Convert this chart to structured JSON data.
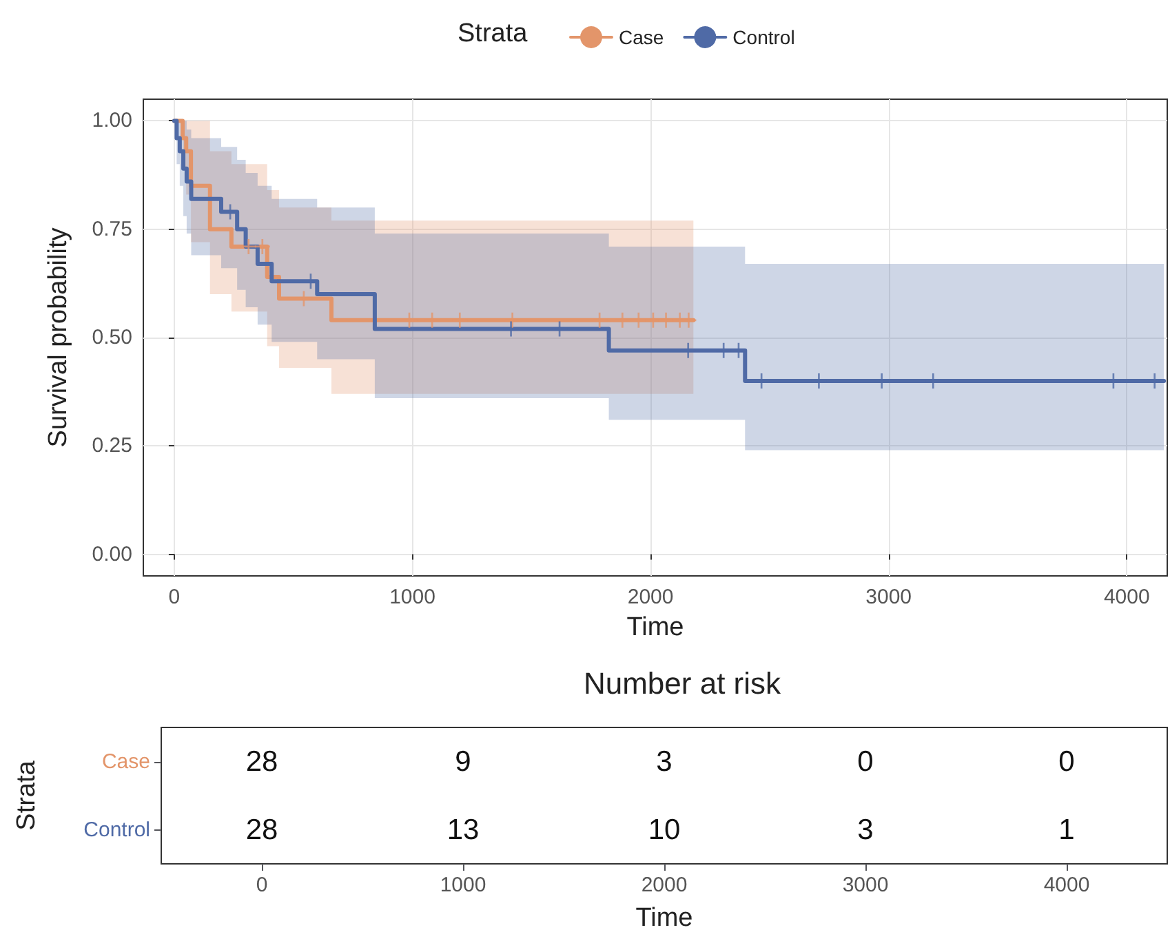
{
  "chart_data": [
    {
      "type": "step",
      "xlabel": "Time",
      "ylabel": "Survival probability",
      "legend_title": "Strata",
      "legend": "top",
      "grid": true,
      "line_style": "solid",
      "xlim": [
        -130,
        4170
      ],
      "xticks": [
        0,
        1000,
        2000,
        3000,
        4000
      ],
      "ylim": [
        -0.05,
        1.05
      ],
      "yticks": [
        {
          "value": 0,
          "label": "0.00"
        },
        {
          "value": 0.25,
          "label": "0.25"
        },
        {
          "value": 0.5,
          "label": "0.50"
        },
        {
          "value": 0.75,
          "label": "0.75"
        },
        {
          "value": 1,
          "label": "1.00"
        }
      ],
      "series": [
        {
          "name": "Case",
          "color": "#e3956a",
          "marker": "none",
          "x": [
            0,
            35,
            50,
            70,
            150,
            240,
            390,
            440,
            660,
            2180
          ],
          "values": [
            1,
            0.96,
            0.93,
            0.85,
            0.75,
            0.71,
            0.64,
            0.59,
            0.54,
            0.54
          ],
          "lower": [
            1,
            0.89,
            0.83,
            0.72,
            0.6,
            0.56,
            0.48,
            0.43,
            0.37,
            0.37
          ],
          "upper": [
            1,
            1,
            1,
            1,
            0.93,
            0.9,
            0.84,
            0.8,
            0.77,
            0.77
          ]
        },
        {
          "name": "Control",
          "color": "#4f6aa6",
          "marker": "none",
          "x": [
            0,
            10,
            23,
            38,
            52,
            71,
            197,
            264,
            300,
            350,
            409,
            600,
            842,
            1825,
            2397,
            4156
          ],
          "values": [
            1,
            0.96,
            0.93,
            0.89,
            0.86,
            0.82,
            0.79,
            0.75,
            0.71,
            0.67,
            0.63,
            0.6,
            0.52,
            0.47,
            0.4,
            0.4
          ],
          "lower": [
            1,
            0.9,
            0.85,
            0.78,
            0.74,
            0.69,
            0.66,
            0.61,
            0.57,
            0.53,
            0.49,
            0.45,
            0.36,
            0.31,
            0.24,
            0.24
          ],
          "upper": [
            1,
            1,
            1,
            1,
            0.98,
            0.96,
            0.94,
            0.91,
            0.88,
            0.85,
            0.82,
            0.8,
            0.74,
            0.71,
            0.67,
            0.67
          ]
        },
        {
          "type": "scatter",
          "color": "#e3956a",
          "marker": "cross",
          "x": [
            312,
            370,
            544,
            987,
            1083,
            1199,
            1420,
            1786,
            1882,
            1950,
            2011,
            2065,
            2123,
            2160
          ],
          "values": [
            0.71,
            0.71,
            0.59,
            0.54,
            0.54,
            0.54,
            0.54,
            0.54,
            0.54,
            0.54,
            0.54,
            0.54,
            0.54,
            0.54
          ]
        },
        {
          "type": "scatter",
          "color": "#4f6aa6",
          "marker": "cross",
          "x": [
            235,
            573,
            1414,
            1618,
            2158,
            2307,
            2370,
            2466,
            2707,
            2971,
            3187,
            3944,
            4117
          ],
          "values": [
            0.79,
            0.63,
            0.52,
            0.52,
            0.47,
            0.47,
            0.47,
            0.4,
            0.4,
            0.4,
            0.4,
            0.4,
            0.4
          ]
        }
      ]
    },
    {
      "type": "heatmap",
      "data_labels": true,
      "title": "Number at risk",
      "xlabel": "Time",
      "ylabel": "Strata",
      "categories": [
        "0",
        "1000",
        "2000",
        "3000",
        "4000"
      ],
      "y_categories": [
        "Case",
        "Control"
      ],
      "cells": [
        [
          28,
          9,
          3,
          0,
          0
        ],
        [
          28,
          13,
          10,
          3,
          1
        ]
      ]
    }
  ]
}
